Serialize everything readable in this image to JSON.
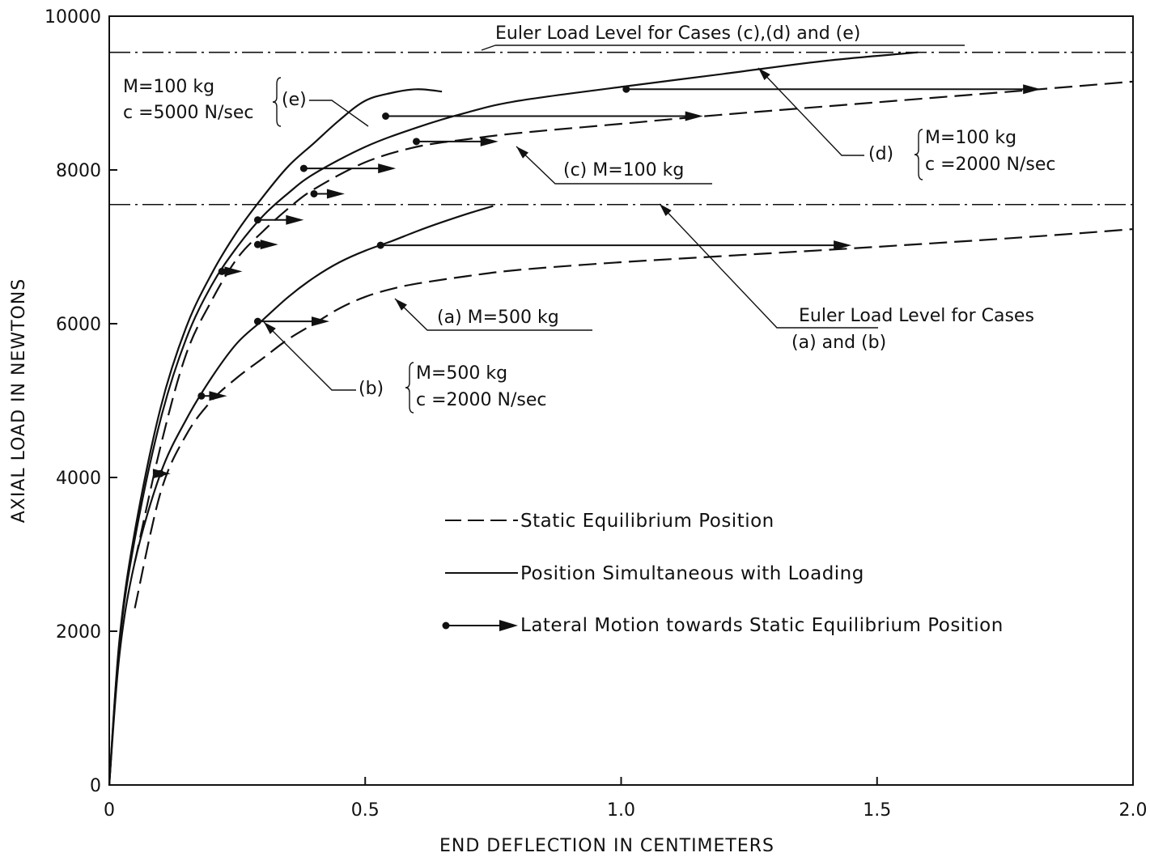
{
  "chart_data": {
    "type": "line",
    "xlabel": "END DEFLECTION IN CENTIMETERS",
    "ylabel": "AXIAL LOAD IN NEWTONS",
    "xlim": [
      0,
      2.0
    ],
    "ylim": [
      0,
      10000
    ],
    "x_ticks": [
      0,
      0.5,
      1.0,
      1.5,
      2.0
    ],
    "x_tick_labels": [
      "0",
      "0.5",
      "1.0",
      "1.5",
      "2.0"
    ],
    "y_ticks": [
      0,
      2000,
      4000,
      6000,
      8000,
      10000
    ],
    "y_tick_labels": [
      "0",
      "2000",
      "4000",
      "6000",
      "8000",
      "10000"
    ],
    "grid": false,
    "series": [
      {
        "style": "solid",
        "x": [
          0,
          0.02,
          0.05,
          0.1,
          0.15,
          0.2,
          0.25,
          0.3,
          0.35,
          0.4,
          0.45,
          0.5,
          0.55,
          0.6,
          0.65
        ],
        "y": [
          0,
          1900,
          3300,
          4900,
          5950,
          6650,
          7200,
          7650,
          8050,
          8350,
          8650,
          8900,
          9000,
          9050,
          9020
        ]
      },
      {
        "style": "solid",
        "x": [
          0,
          0.02,
          0.05,
          0.1,
          0.15,
          0.2,
          0.25,
          0.3,
          0.35,
          0.4,
          0.5,
          0.6,
          0.7,
          0.8,
          1.0,
          1.2,
          1.4,
          1.58
        ],
        "y": [
          0,
          1850,
          3200,
          4750,
          5800,
          6500,
          7000,
          7400,
          7700,
          7950,
          8300,
          8550,
          8750,
          8900,
          9080,
          9250,
          9420,
          9530
        ]
      },
      {
        "style": "dashed",
        "x": [
          0.05,
          0.1,
          0.15,
          0.2,
          0.25,
          0.3,
          0.35,
          0.4,
          0.5,
          0.6,
          0.7,
          0.8,
          1.0,
          1.2,
          1.5,
          1.8,
          2.0
        ],
        "y": [
          2900,
          4400,
          5600,
          6300,
          6850,
          7200,
          7500,
          7750,
          8100,
          8300,
          8400,
          8480,
          8600,
          8720,
          8880,
          9040,
          9150
        ]
      },
      {
        "style": "solid",
        "x": [
          0,
          0.02,
          0.05,
          0.1,
          0.15,
          0.2,
          0.25,
          0.3,
          0.35,
          0.4,
          0.45,
          0.5,
          0.55,
          0.6,
          0.65,
          0.7,
          0.75
        ],
        "y": [
          0,
          1700,
          2900,
          4050,
          4750,
          5300,
          5750,
          6050,
          6350,
          6600,
          6800,
          6950,
          7070,
          7200,
          7320,
          7430,
          7530
        ]
      },
      {
        "style": "dashed",
        "x": [
          0.05,
          0.1,
          0.15,
          0.2,
          0.25,
          0.3,
          0.35,
          0.4,
          0.45,
          0.5,
          0.55,
          0.6,
          0.7,
          0.8,
          1.0,
          1.2,
          1.5,
          1.8,
          2.0
        ],
        "y": [
          2300,
          3800,
          4550,
          5000,
          5300,
          5550,
          5800,
          6000,
          6200,
          6350,
          6450,
          6520,
          6620,
          6700,
          6800,
          6880,
          7000,
          7130,
          7230
        ]
      }
    ],
    "reference_lines": [
      {
        "y": 9530,
        "label": "Euler Load Level for Cases (c),(d) and (e)"
      },
      {
        "y": 7550,
        "label_line1": "Euler Load Level for Cases",
        "label_line2": "(a) and (b)"
      }
    ],
    "motion_arrows": [
      {
        "x0": 0.54,
        "x1": 1.16,
        "y": 8700
      },
      {
        "x0": 1.01,
        "x1": 1.82,
        "y": 9050
      },
      {
        "x0": 0.38,
        "x1": 0.56,
        "y": 8020
      },
      {
        "x0": 0.6,
        "x1": 0.76,
        "y": 8370
      },
      {
        "x0": 0.4,
        "x1": 0.46,
        "y": 7690
      },
      {
        "x0": 0.29,
        "x1": 0.38,
        "y": 7350
      },
      {
        "x0": 0.29,
        "x1": 0.33,
        "y": 7030
      },
      {
        "x0": 0.22,
        "x1": 0.26,
        "y": 6680
      },
      {
        "x0": 0.53,
        "x1": 1.45,
        "y": 7020
      },
      {
        "x0": 0.29,
        "x1": 0.43,
        "y": 6030
      },
      {
        "x0": 0.18,
        "x1": 0.23,
        "y": 5060
      },
      {
        "x0": 0.1,
        "x1": 0.12,
        "y": 4050
      }
    ],
    "annotations": {
      "e_line1": "M=100 kg",
      "e_line2": "c =5000 N/sec",
      "e_tag": "(e)",
      "c_label": "(c)  M=100 kg",
      "d_tag": "(d)",
      "d_line1": "M=100 kg",
      "d_line2": "c =2000 N/sec",
      "a_label": "(a)   M=500 kg",
      "b_tag": "(b)",
      "b_line1": "M=500 kg",
      "b_line2": "c =2000 N/sec"
    },
    "legend": {
      "position": "center-right",
      "entries": [
        "Static Equilibrium Position",
        "Position Simultaneous with Loading",
        "Lateral Motion towards Static Equilibrium Position"
      ]
    }
  }
}
